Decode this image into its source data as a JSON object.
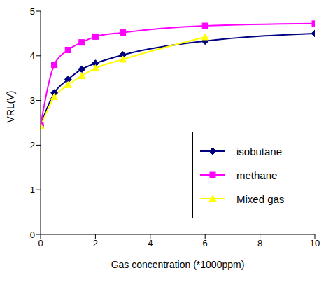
{
  "chart_data": {
    "type": "line",
    "x_label": "Gas concentration (*1000ppm)",
    "y_label": "VRL(V)",
    "x": [
      0,
      0.5,
      1,
      1.5,
      2,
      3,
      6,
      10
    ],
    "series": [
      {
        "name": "isobutane",
        "color": "#000080",
        "marker": "diamond",
        "values": [
          2.45,
          3.17,
          3.47,
          3.7,
          3.83,
          4.02,
          4.33,
          4.5
        ]
      },
      {
        "name": "methane",
        "color": "#ff00ff",
        "marker": "square",
        "values": [
          2.45,
          3.8,
          4.13,
          4.3,
          4.43,
          4.52,
          4.67,
          4.72
        ]
      },
      {
        "name": "Mixed gas",
        "color": "#ffff00",
        "marker": "triangle",
        "values": [
          2.42,
          3.08,
          3.35,
          3.55,
          3.72,
          3.92,
          4.42,
          null
        ]
      }
    ],
    "xlim": [
      0,
      10
    ],
    "xticks": [
      0,
      2,
      4,
      6,
      8,
      10
    ],
    "ylim": [
      0,
      5
    ],
    "yticks": [
      0,
      1,
      2,
      3,
      4,
      5
    ],
    "grid": false,
    "legend": "lower right"
  }
}
